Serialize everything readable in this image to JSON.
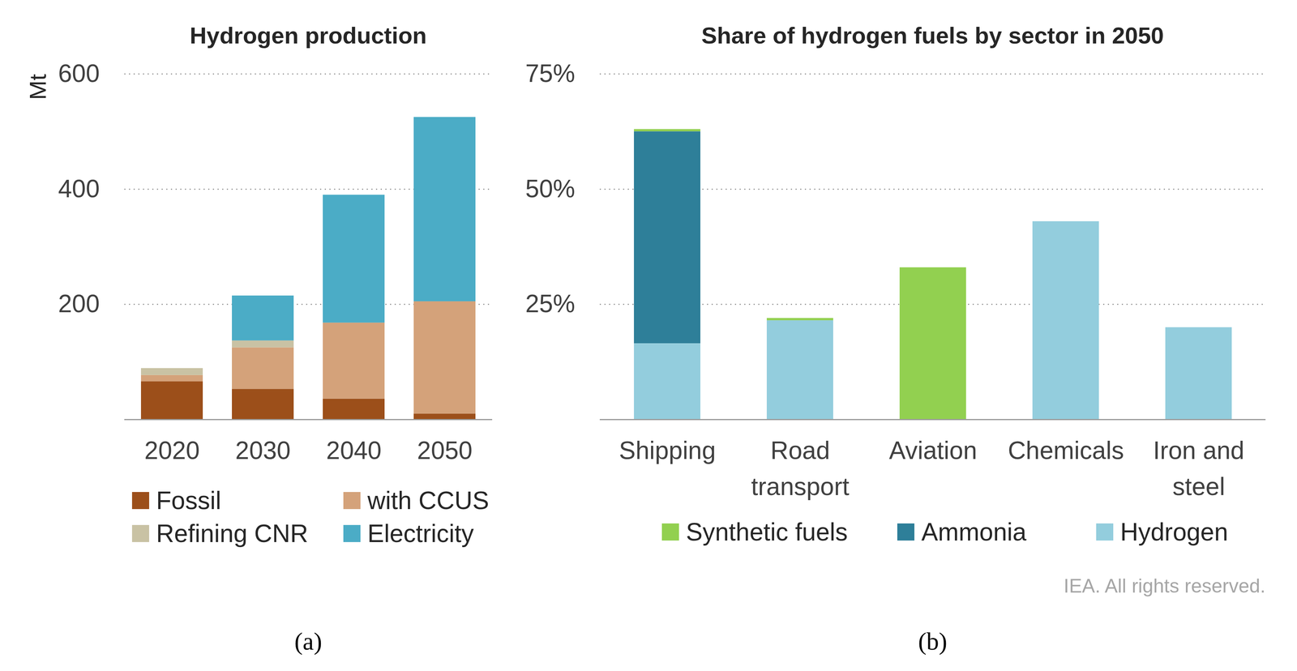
{
  "chart_data": [
    {
      "type": "bar",
      "stacked": true,
      "title": "Hydrogen production",
      "y_label": "Mt",
      "categories": [
        "2020",
        "2030",
        "2040",
        "2050"
      ],
      "series": [
        {
          "name": "Fossil",
          "color": "#9c4f1a",
          "values": [
            66,
            53,
            36,
            10
          ]
        },
        {
          "name": "with CCUS",
          "color": "#d4a27a",
          "values": [
            11,
            72,
            132,
            195
          ]
        },
        {
          "name": "Refining CNR",
          "color": "#c9c2a4",
          "values": [
            12,
            12,
            0,
            0
          ]
        },
        {
          "name": "Electricity",
          "color": "#4bacc6",
          "values": [
            0,
            78,
            222,
            320
          ]
        }
      ],
      "ylim": [
        0,
        600
      ],
      "yticks": [
        200,
        400,
        600
      ],
      "grid": true,
      "legend": "bottom",
      "panel_label": "(a)"
    },
    {
      "type": "bar",
      "stacked": true,
      "title": "Share of hydrogen fuels by sector in 2050",
      "categories": [
        "Shipping",
        "Road transport",
        "Aviation",
        "Chemicals",
        "Iron and steel"
      ],
      "series": [
        {
          "name": "Synthetic fuels",
          "color": "#92d050",
          "values": [
            0.5,
            0.5,
            33,
            0,
            0
          ]
        },
        {
          "name": "Ammonia",
          "color": "#2e7f99",
          "values": [
            46,
            0,
            0,
            0,
            0
          ]
        },
        {
          "name": "Hydrogen",
          "color": "#93cddd",
          "values": [
            16.5,
            21.5,
            0,
            43,
            20
          ]
        }
      ],
      "ylim": [
        0,
        75
      ],
      "yticks": [
        {
          "value": 25,
          "label": "25%"
        },
        {
          "value": 50,
          "label": "50%"
        },
        {
          "value": 75,
          "label": "75%"
        }
      ],
      "grid": true,
      "legend": "bottom",
      "source": "IEA. All rights reserved.",
      "panel_label": "(b)"
    }
  ]
}
